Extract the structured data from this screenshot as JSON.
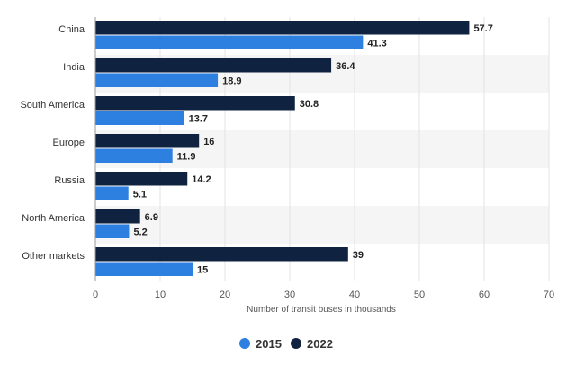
{
  "chart_data": {
    "type": "bar",
    "orientation": "horizontal",
    "categories": [
      "China",
      "India",
      "South America",
      "Europe",
      "Russia",
      "North America",
      "Other markets"
    ],
    "series": [
      {
        "name": "2022",
        "color": "#0f2340",
        "values": [
          57.7,
          36.4,
          30.8,
          16,
          14.2,
          6.9,
          39
        ]
      },
      {
        "name": "2015",
        "color": "#2d7fe0",
        "values": [
          41.3,
          18.9,
          13.7,
          11.9,
          5.1,
          5.2,
          15
        ]
      }
    ],
    "xlabel": "Number of transit buses in thousands",
    "xlim": [
      0,
      70
    ],
    "xticks": [
      0,
      10,
      20,
      30,
      40,
      50,
      60,
      70
    ],
    "grid": true,
    "legend": {
      "position": "bottom",
      "order": [
        "2015",
        "2022"
      ]
    }
  }
}
